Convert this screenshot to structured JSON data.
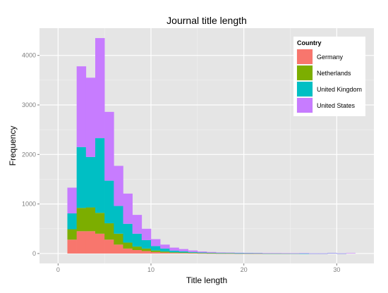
{
  "chart_data": {
    "type": "bar",
    "stacked": true,
    "histogram": true,
    "title": "Journal title length",
    "xlabel": "Title length",
    "ylabel": "Frequency",
    "xlim": [
      -2,
      34
    ],
    "ylim": [
      -200,
      4550
    ],
    "xticks": [
      0,
      10,
      20,
      30
    ],
    "yticks": [
      0,
      1000,
      2000,
      3000,
      4000
    ],
    "grid": true,
    "legend_title": "Country",
    "legend_position": "top-right",
    "bin_starts": [
      1,
      2,
      3,
      4,
      5,
      6,
      7,
      8,
      9,
      10,
      11,
      12,
      13,
      14,
      15,
      16,
      17,
      18,
      19,
      20,
      21,
      22,
      23,
      24,
      25,
      26,
      27,
      28,
      29,
      30,
      31
    ],
    "bin_width": 1,
    "series": [
      {
        "name": "Germany",
        "color": "#F8766D",
        "values": [
          280,
          450,
          450,
          400,
          280,
          180,
          100,
          70,
          50,
          30,
          20,
          12,
          10,
          8,
          5,
          4,
          3,
          3,
          2,
          2,
          2,
          1,
          1,
          1,
          1,
          0,
          0,
          0,
          0,
          0,
          0
        ]
      },
      {
        "name": "Netherlands",
        "color": "#7CAE00",
        "values": [
          210,
          470,
          480,
          420,
          330,
          220,
          120,
          70,
          50,
          30,
          20,
          12,
          10,
          8,
          5,
          4,
          3,
          3,
          2,
          2,
          2,
          1,
          1,
          1,
          1,
          0,
          0,
          0,
          0,
          0,
          0
        ]
      },
      {
        "name": "United Kingdom",
        "color": "#00BFC4",
        "values": [
          320,
          1230,
          1020,
          1510,
          860,
          560,
          380,
          260,
          170,
          90,
          60,
          35,
          25,
          15,
          10,
          8,
          5,
          5,
          3,
          3,
          3,
          2,
          2,
          2,
          1,
          1,
          1,
          1,
          8,
          1,
          0
        ]
      },
      {
        "name": "United States",
        "color": "#C77CFF",
        "values": [
          520,
          1630,
          1600,
          2020,
          1390,
          810,
          610,
          380,
          230,
          140,
          80,
          60,
          45,
          30,
          20,
          15,
          10,
          8,
          8,
          6,
          5,
          4,
          4,
          3,
          3,
          8,
          2,
          2,
          2,
          2,
          8
        ]
      }
    ]
  }
}
